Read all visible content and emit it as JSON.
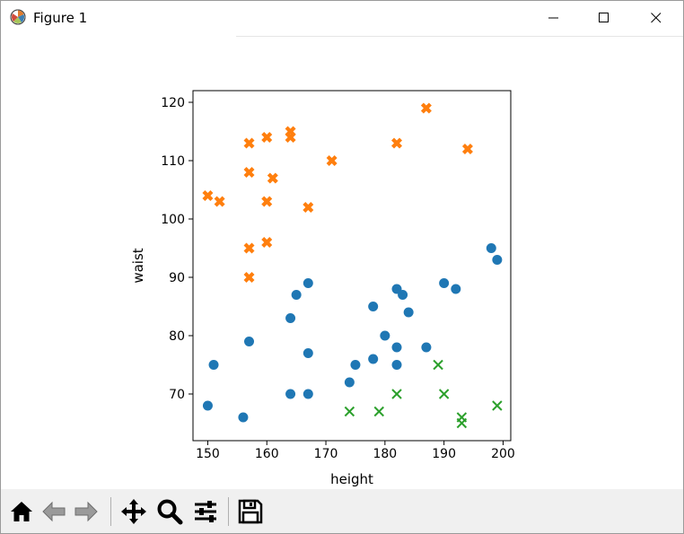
{
  "window": {
    "title": "Figure 1",
    "minimize_icon": "minimize-icon",
    "maximize_icon": "maximize-icon",
    "close_icon": "close-icon"
  },
  "toolbar": {
    "buttons": [
      {
        "name": "home-button",
        "icon": "home-icon",
        "tooltip": "Reset original view"
      },
      {
        "name": "back-button",
        "icon": "back-arrow-icon",
        "tooltip": "Back to previous view"
      },
      {
        "name": "forward-button",
        "icon": "forward-arrow-icon",
        "tooltip": "Forward to next view"
      },
      {
        "name": "pan-button",
        "icon": "move-icon",
        "tooltip": "Pan axes"
      },
      {
        "name": "zoom-button",
        "icon": "magnifier-icon",
        "tooltip": "Zoom to rectangle"
      },
      {
        "name": "configure-button",
        "icon": "sliders-icon",
        "tooltip": "Configure subplots"
      },
      {
        "name": "save-button",
        "icon": "floppy-disk-icon",
        "tooltip": "Save the figure"
      }
    ]
  },
  "chart_data": {
    "type": "scatter",
    "title": "",
    "xlabel": "height",
    "ylabel": "waist",
    "xlim": [
      147.5,
      201.3
    ],
    "ylim": [
      62,
      122
    ],
    "xticks": [
      150,
      160,
      170,
      180,
      190,
      200
    ],
    "yticks": [
      70,
      80,
      90,
      100,
      110,
      120
    ],
    "grid": false,
    "legend": false,
    "series": [
      {
        "marker": "circle",
        "color": "#1f77b4",
        "points": [
          [
            150,
            68
          ],
          [
            151,
            75
          ],
          [
            156,
            66
          ],
          [
            157,
            79
          ],
          [
            164,
            70
          ],
          [
            164,
            83
          ],
          [
            165,
            87
          ],
          [
            167,
            89
          ],
          [
            167,
            77
          ],
          [
            167,
            70
          ],
          [
            174,
            72
          ],
          [
            175,
            75
          ],
          [
            178,
            85
          ],
          [
            178,
            76
          ],
          [
            180,
            80
          ],
          [
            182,
            88
          ],
          [
            182,
            78
          ],
          [
            182,
            75
          ],
          [
            183,
            87
          ],
          [
            184,
            84
          ],
          [
            187,
            78
          ],
          [
            190,
            89
          ],
          [
            192,
            88
          ],
          [
            198,
            95
          ],
          [
            199,
            93
          ]
        ]
      },
      {
        "marker": "X",
        "color": "#ff7f0e",
        "points": [
          [
            150,
            104
          ],
          [
            152,
            103
          ],
          [
            157,
            113
          ],
          [
            157,
            108
          ],
          [
            157,
            95
          ],
          [
            157,
            90
          ],
          [
            160,
            114
          ],
          [
            160,
            103
          ],
          [
            160,
            96
          ],
          [
            161,
            107
          ],
          [
            164,
            115
          ],
          [
            164,
            114
          ],
          [
            167,
            102
          ],
          [
            171,
            110
          ],
          [
            182,
            113
          ],
          [
            187,
            119
          ],
          [
            194,
            112
          ]
        ]
      },
      {
        "marker": "x",
        "color": "#2ca02c",
        "points": [
          [
            174,
            67
          ],
          [
            179,
            67
          ],
          [
            182,
            70
          ],
          [
            189,
            75
          ],
          [
            190,
            70
          ],
          [
            193,
            66
          ],
          [
            193,
            65
          ],
          [
            199,
            68
          ]
        ]
      }
    ]
  }
}
